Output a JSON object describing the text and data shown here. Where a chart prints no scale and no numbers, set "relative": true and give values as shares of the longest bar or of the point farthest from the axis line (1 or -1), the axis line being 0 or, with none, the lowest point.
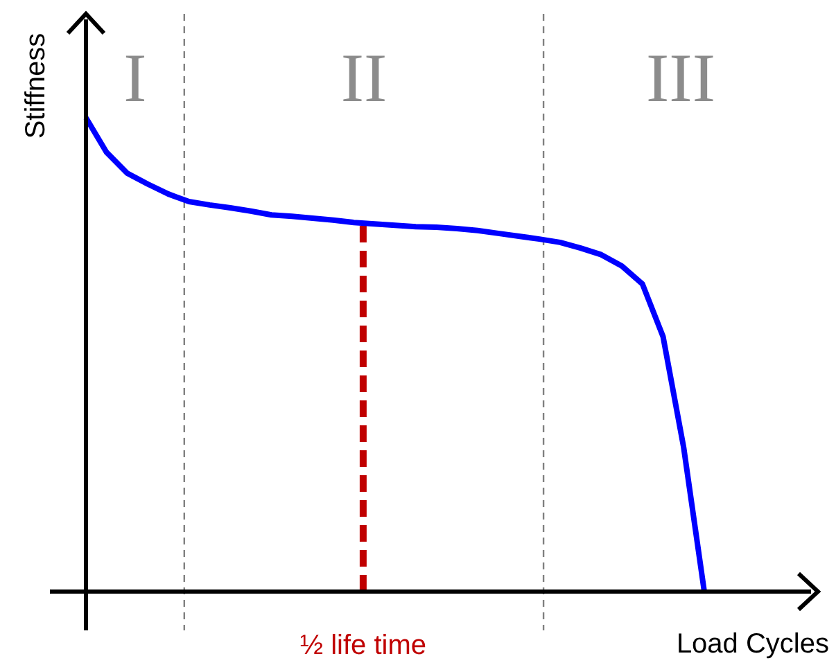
{
  "chart_data": {
    "type": "line",
    "relative": true,
    "xlabel": "Load Cycles",
    "ylabel": "Stiffness",
    "categories": [
      null,
      null,
      null,
      null,
      null,
      null,
      null,
      null,
      null,
      null,
      null,
      null,
      null,
      null,
      null,
      null,
      null,
      null,
      null,
      null,
      null,
      null,
      null,
      null,
      null,
      null,
      null,
      null,
      null,
      null,
      null
    ],
    "series": [
      {
        "color": "#0000ff",
        "values": [
          1,
          0.927,
          0.883,
          0.86,
          0.839,
          0.823,
          0.816,
          0.81,
          0.803,
          0.795,
          0.792,
          0.788,
          0.784,
          0.779,
          0.776,
          0.773,
          0.77,
          0.769,
          0.766,
          0.762,
          0.756,
          0.75,
          0.744,
          0.737,
          0.725,
          0.711,
          0.687,
          0.649,
          0.538,
          0.304,
          0
        ]
      }
    ],
    "annotations": [
      "I",
      "II",
      "III",
      "½ life time"
    ]
  }
}
